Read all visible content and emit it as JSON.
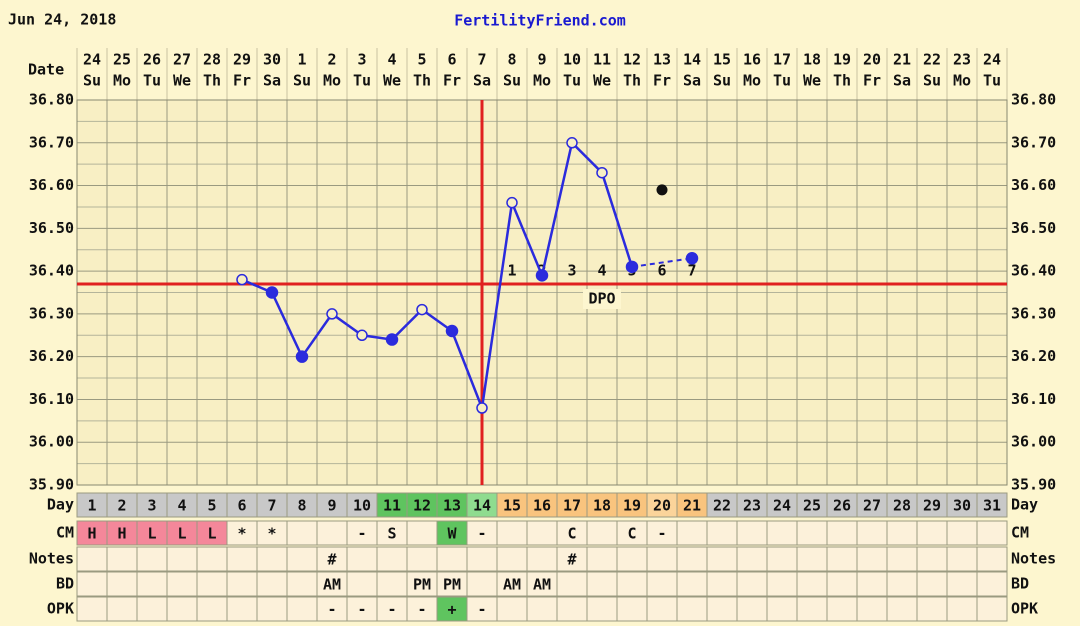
{
  "chart_data": {
    "type": "line",
    "title": "Jun 24, 2018",
    "site": "FertilityFriend.com",
    "date_label": "Date",
    "dates": [
      "24",
      "25",
      "26",
      "27",
      "28",
      "29",
      "30",
      "1",
      "2",
      "3",
      "4",
      "5",
      "6",
      "7",
      "8",
      "9",
      "10",
      "11",
      "12",
      "13",
      "14",
      "15",
      "16",
      "17",
      "18",
      "19",
      "20",
      "21",
      "22",
      "23",
      "24"
    ],
    "weekdays": [
      "Su",
      "Mo",
      "Tu",
      "We",
      "Th",
      "Fr",
      "Sa",
      "Su",
      "Mo",
      "Tu",
      "We",
      "Th",
      "Fr",
      "Sa",
      "Su",
      "Mo",
      "Tu",
      "We",
      "Th",
      "Fr",
      "Sa",
      "Su",
      "Mo",
      "Tu",
      "We",
      "Th",
      "Fr",
      "Sa",
      "Su",
      "Mo",
      "Tu"
    ],
    "x": [
      1,
      2,
      3,
      4,
      5,
      6,
      7,
      8,
      9,
      10,
      11,
      12,
      13,
      14,
      15,
      16,
      17,
      18,
      19,
      20,
      21,
      22,
      23,
      24,
      25,
      26,
      27,
      28,
      29,
      30,
      31
    ],
    "values": [
      null,
      null,
      null,
      null,
      null,
      36.38,
      36.35,
      36.2,
      36.3,
      36.25,
      36.24,
      36.31,
      36.26,
      36.08,
      36.56,
      36.39,
      36.7,
      36.63,
      36.41,
      null,
      36.43,
      null,
      null,
      null,
      null,
      null,
      null,
      null,
      null,
      null,
      null
    ],
    "filled": [
      false,
      false,
      false,
      false,
      false,
      false,
      true,
      true,
      false,
      false,
      true,
      false,
      true,
      false,
      false,
      true,
      false,
      false,
      true,
      false,
      true,
      false,
      false,
      false,
      false,
      false,
      false,
      false,
      false,
      false,
      false
    ],
    "discarded": [
      null,
      null,
      null,
      null,
      null,
      null,
      null,
      null,
      null,
      null,
      null,
      null,
      null,
      null,
      null,
      null,
      null,
      null,
      null,
      36.59,
      null,
      null,
      null,
      null,
      null,
      null,
      null,
      null,
      null,
      null,
      null
    ],
    "color": "#2b2bdd",
    "gap_style": "dashed",
    "coverline": 36.37,
    "ovulation_day": 14,
    "marker_color": "#e02020",
    "dpo": [
      null,
      null,
      null,
      null,
      null,
      null,
      null,
      null,
      null,
      null,
      null,
      null,
      null,
      null,
      1,
      2,
      3,
      4,
      5,
      6,
      7,
      null,
      null,
      null,
      null,
      null,
      null,
      null,
      null,
      null,
      null
    ],
    "dpo_label": "DPO",
    "dpo_label_day": 18,
    "ylim": [
      35.9,
      36.8
    ],
    "yticks": [
      {
        "value": 35.9,
        "label": "35.90"
      },
      {
        "value": 36.0,
        "label": "36.00"
      },
      {
        "value": 36.1,
        "label": "36.10"
      },
      {
        "value": 36.2,
        "label": "36.20"
      },
      {
        "value": 36.3,
        "label": "36.30"
      },
      {
        "value": 36.4,
        "label": "36.40"
      },
      {
        "value": 36.5,
        "label": "36.50"
      },
      {
        "value": 36.6,
        "label": "36.60"
      },
      {
        "value": 36.7,
        "label": "36.70"
      },
      {
        "value": 36.8,
        "label": "36.80"
      }
    ],
    "grid": true,
    "minor_grid": true,
    "rows": [
      {
        "label": "Day",
        "cells": [
          1,
          2,
          3,
          4,
          5,
          6,
          7,
          8,
          9,
          10,
          11,
          12,
          13,
          14,
          15,
          16,
          17,
          18,
          19,
          20,
          21,
          22,
          23,
          24,
          25,
          26,
          27,
          28,
          29,
          30,
          31
        ],
        "colors": [
          "#c8c8c8",
          "#c8c8c8",
          "#c8c8c8",
          "#c8c8c8",
          "#c8c8c8",
          "#c8c8c8",
          "#c8c8c8",
          "#c8c8c8",
          "#c8c8c8",
          "#c8c8c8",
          "#5fc45f",
          "#5fc45f",
          "#5fc45f",
          "#8fdc8f",
          "#f9c47e",
          "#f9c47e",
          "#f9c47e",
          "#f9c47e",
          "#f9c47e",
          "#fbd49a",
          "#f9c47e",
          "#c8c8c8",
          "#c8c8c8",
          "#c8c8c8",
          "#c8c8c8",
          "#c8c8c8",
          "#c8c8c8",
          "#c8c8c8",
          "#c8c8c8",
          "#c8c8c8",
          "#c8c8c8"
        ]
      },
      {
        "label": "CM",
        "cells": [
          "H",
          "H",
          "L",
          "L",
          "L",
          "*",
          "*",
          null,
          null,
          "-",
          "S",
          null,
          "W",
          "-",
          null,
          null,
          "C",
          null,
          "C",
          "-",
          null,
          null,
          null,
          null,
          null,
          null,
          null,
          null,
          null,
          null,
          null
        ],
        "colors": [
          "#f4879a",
          "#f4879a",
          "#f4879a",
          "#f4879a",
          "#f4879a",
          null,
          null,
          null,
          null,
          null,
          null,
          null,
          "#5fc45f",
          null,
          null,
          null,
          null,
          null,
          null,
          null,
          null,
          null,
          null,
          null,
          null,
          null,
          null,
          null,
          null,
          null,
          null
        ]
      },
      {
        "label": "Notes",
        "cells": [
          null,
          null,
          null,
          null,
          null,
          null,
          null,
          null,
          "#",
          null,
          null,
          null,
          null,
          null,
          null,
          null,
          "#",
          null,
          null,
          null,
          null,
          null,
          null,
          null,
          null,
          null,
          null,
          null,
          null,
          null,
          null
        ]
      },
      {
        "label": "BD",
        "cells": [
          null,
          null,
          null,
          null,
          null,
          null,
          null,
          null,
          "AM",
          null,
          null,
          "PM",
          "PM",
          null,
          "AM",
          "AM",
          null,
          null,
          null,
          null,
          null,
          null,
          null,
          null,
          null,
          null,
          null,
          null,
          null,
          null,
          null
        ]
      },
      {
        "label": "OPK",
        "cells": [
          null,
          null,
          null,
          null,
          null,
          null,
          null,
          null,
          "-",
          "-",
          "-",
          "-",
          "+",
          "-",
          null,
          null,
          null,
          null,
          null,
          null,
          null,
          null,
          null,
          null,
          null,
          null,
          null,
          null,
          null,
          null,
          null
        ],
        "colors": [
          null,
          null,
          null,
          null,
          null,
          null,
          null,
          null,
          null,
          null,
          null,
          null,
          "#5fc45f",
          null,
          null,
          null,
          null,
          null,
          null,
          null,
          null,
          null,
          null,
          null,
          null,
          null,
          null,
          null,
          null,
          null,
          null
        ]
      }
    ]
  }
}
